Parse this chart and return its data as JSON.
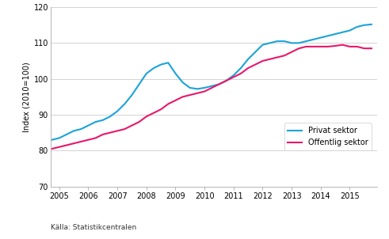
{
  "title": "",
  "ylabel": "Index (2010=100)",
  "source": "Källa: Statistikcentralen",
  "ylim": [
    70,
    120
  ],
  "yticks": [
    70,
    80,
    90,
    100,
    110,
    120
  ],
  "xlim": [
    2004.7,
    2015.95
  ],
  "xticks": [
    2005,
    2006,
    2007,
    2008,
    2009,
    2010,
    2011,
    2012,
    2013,
    2014,
    2015
  ],
  "privat_color": "#1BA3D8",
  "offentlig_color": "#E8176A",
  "privat_label": "Privat sektor",
  "offentlig_label": "Offentlig sektor",
  "line_width": 1.5,
  "privat_x": [
    2004.75,
    2005.0,
    2005.25,
    2005.5,
    2005.75,
    2006.0,
    2006.25,
    2006.5,
    2006.75,
    2007.0,
    2007.25,
    2007.5,
    2007.75,
    2008.0,
    2008.25,
    2008.5,
    2008.75,
    2009.0,
    2009.25,
    2009.5,
    2009.75,
    2010.0,
    2010.25,
    2010.5,
    2010.75,
    2011.0,
    2011.25,
    2011.5,
    2011.75,
    2012.0,
    2012.25,
    2012.5,
    2012.75,
    2013.0,
    2013.25,
    2013.5,
    2013.75,
    2014.0,
    2014.25,
    2014.5,
    2014.75,
    2015.0,
    2015.25,
    2015.5,
    2015.75
  ],
  "privat_y": [
    83.0,
    83.5,
    84.5,
    85.5,
    86.0,
    87.0,
    88.0,
    88.5,
    89.5,
    91.0,
    93.0,
    95.5,
    98.5,
    101.5,
    103.0,
    104.0,
    104.5,
    101.5,
    99.0,
    97.5,
    97.2,
    97.5,
    98.0,
    98.5,
    99.5,
    101.0,
    103.0,
    105.5,
    107.5,
    109.5,
    110.0,
    110.5,
    110.5,
    110.0,
    110.0,
    110.5,
    111.0,
    111.5,
    112.0,
    112.5,
    113.0,
    113.5,
    114.5,
    115.0,
    115.2
  ],
  "offentlig_x": [
    2004.75,
    2005.0,
    2005.25,
    2005.5,
    2005.75,
    2006.0,
    2006.25,
    2006.5,
    2006.75,
    2007.0,
    2007.25,
    2007.5,
    2007.75,
    2008.0,
    2008.25,
    2008.5,
    2008.75,
    2009.0,
    2009.25,
    2009.5,
    2009.75,
    2010.0,
    2010.25,
    2010.5,
    2010.75,
    2011.0,
    2011.25,
    2011.5,
    2011.75,
    2012.0,
    2012.25,
    2012.5,
    2012.75,
    2013.0,
    2013.25,
    2013.5,
    2013.75,
    2014.0,
    2014.25,
    2014.5,
    2014.75,
    2015.0,
    2015.25,
    2015.5,
    2015.75
  ],
  "offentlig_y": [
    80.5,
    81.0,
    81.5,
    82.0,
    82.5,
    83.0,
    83.5,
    84.5,
    85.0,
    85.5,
    86.0,
    87.0,
    88.0,
    89.5,
    90.5,
    91.5,
    93.0,
    94.0,
    95.0,
    95.5,
    96.0,
    96.5,
    97.5,
    98.5,
    99.5,
    100.5,
    101.5,
    103.0,
    104.0,
    105.0,
    105.5,
    106.0,
    106.5,
    107.5,
    108.5,
    109.0,
    109.0,
    109.0,
    109.0,
    109.2,
    109.5,
    109.0,
    109.0,
    108.5,
    108.5
  ],
  "bg_color": "#FFFFFF",
  "grid_color": "#CCCCCC",
  "font_size_axis": 7,
  "font_size_source": 6.5,
  "font_size_legend": 7,
  "font_size_ylabel": 7
}
